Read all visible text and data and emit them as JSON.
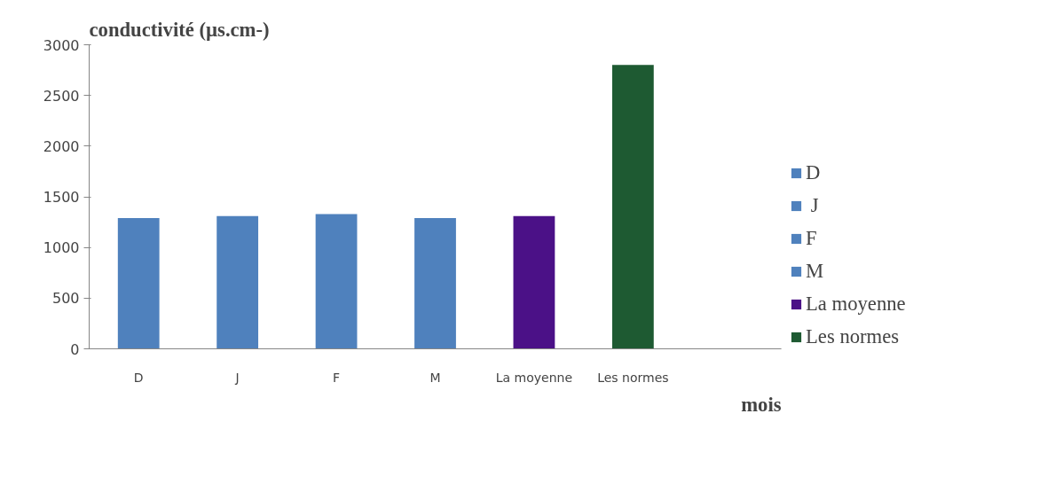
{
  "chart_data": {
    "type": "bar",
    "title": "conductivité  (µs.cm-)",
    "xlabel": "mois",
    "categories": [
      "D",
      "J",
      "F",
      "M",
      "La moyenne",
      "Les normes",
      null
    ],
    "series": [
      {
        "name": "D",
        "color": "#4f81bd",
        "values": [
          1290,
          null,
          null,
          null,
          null,
          null,
          null
        ]
      },
      {
        "name": " J",
        "color": "#4f81bd",
        "values": [
          null,
          1310,
          null,
          null,
          null,
          null,
          null
        ]
      },
      {
        "name": "F",
        "color": "#4f81bd",
        "values": [
          null,
          null,
          1330,
          null,
          null,
          null,
          null
        ]
      },
      {
        "name": "M",
        "color": "#4f81bd",
        "values": [
          null,
          null,
          null,
          1290,
          null,
          null,
          null
        ]
      },
      {
        "name": "La moyenne",
        "color": "#4b1187",
        "values": [
          null,
          null,
          null,
          null,
          1310,
          null,
          null
        ]
      },
      {
        "name": "Les normes",
        "color": "#1e5a32",
        "values": [
          null,
          null,
          null,
          null,
          null,
          2800,
          null
        ]
      }
    ],
    "ylim": [
      0,
      3000
    ],
    "yticks": [
      0,
      500,
      1000,
      1500,
      2000,
      2500,
      3000
    ],
    "grid": false,
    "legend": "right"
  }
}
